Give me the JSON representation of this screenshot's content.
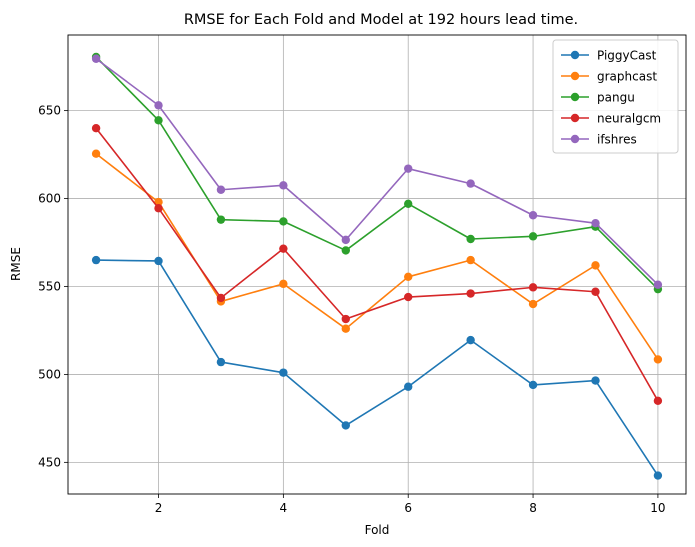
{
  "chart_data": {
    "type": "line",
    "title": "RMSE for Each Fold and Model at 192 hours lead time.",
    "xlabel": "Fold",
    "ylabel": "RMSE",
    "xlim": [
      0.55,
      10.45
    ],
    "ylim": [
      432,
      693
    ],
    "xticks": [
      2,
      4,
      6,
      8,
      10
    ],
    "yticks": [
      450,
      500,
      550,
      600,
      650
    ],
    "grid": true,
    "legend_position": "top-right",
    "x": [
      1,
      2,
      3,
      4,
      5,
      6,
      7,
      8,
      9,
      10
    ],
    "series": [
      {
        "name": "PiggyCast",
        "color": "#1f77b4",
        "values": [
          565,
          564.5,
          507,
          501,
          471,
          493,
          519.5,
          494,
          496.5,
          442.5
        ]
      },
      {
        "name": "graphcast",
        "color": "#ff7f0e",
        "values": [
          625.5,
          598,
          541.5,
          551.5,
          526,
          555.5,
          565,
          540,
          562,
          508.5
        ]
      },
      {
        "name": "pangu",
        "color": "#2ca02c",
        "values": [
          680.5,
          644.5,
          588,
          587,
          570.5,
          597,
          577,
          578.5,
          584,
          548.5
        ]
      },
      {
        "name": "neuralgcm",
        "color": "#d62728",
        "values": [
          640,
          594.5,
          543.5,
          571.5,
          531.5,
          544,
          546,
          549.5,
          547,
          485
        ]
      },
      {
        "name": "ifshres",
        "color": "#9467bd",
        "values": [
          679.5,
          653,
          605,
          607.5,
          576.5,
          617,
          608.5,
          590.5,
          586,
          551
        ]
      }
    ]
  }
}
